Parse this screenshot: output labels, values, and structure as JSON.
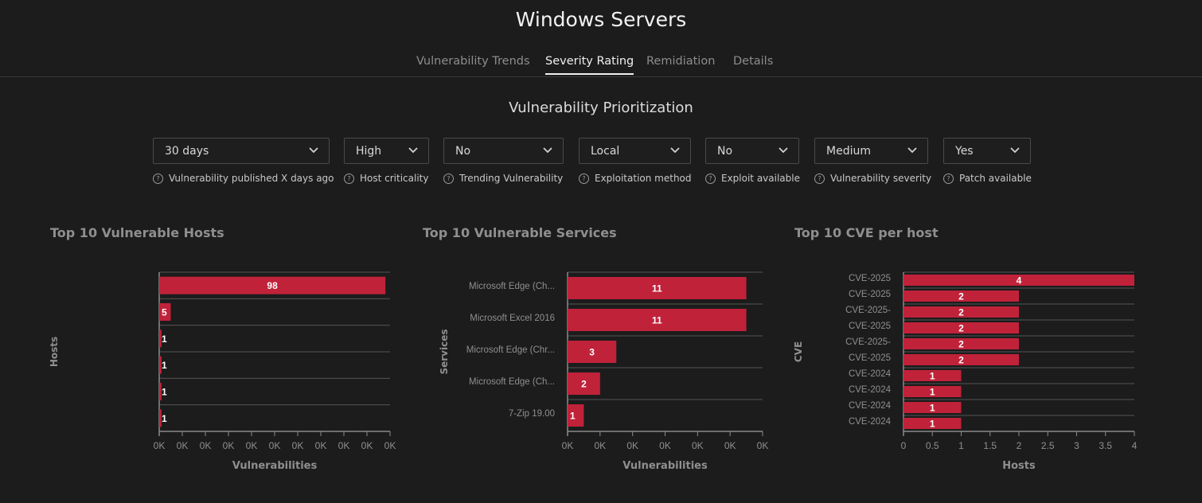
{
  "page": {
    "title": "Windows Servers"
  },
  "tabs": [
    {
      "label": "Vulnerability Trends",
      "active": false
    },
    {
      "label": "Severity Rating",
      "active": true
    },
    {
      "label": "Remidiation",
      "active": false
    },
    {
      "label": "Details",
      "active": false
    }
  ],
  "section": {
    "title": "Vulnerability Prioritization"
  },
  "filters": [
    {
      "value": "30 days",
      "help": "Vulnerability published X days ago"
    },
    {
      "value": "High",
      "help": "Host criticality"
    },
    {
      "value": "No",
      "help": "Trending Vulnerability"
    },
    {
      "value": "Local",
      "help": "Exploitation method"
    },
    {
      "value": "No",
      "help": "Exploit available"
    },
    {
      "value": "Medium",
      "help": "Vulnerability severity"
    },
    {
      "value": "Yes",
      "help": "Patch available"
    }
  ],
  "colors": {
    "bar": "#c0223a",
    "axis": "#8a8a8a",
    "grid": "#555555",
    "label": "#8f8f8f"
  },
  "chart_data": [
    {
      "type": "bar",
      "orientation": "horizontal",
      "title": "Top 10 Vulnerable Hosts",
      "xlabel": "Vulnerabilities",
      "ylabel": "Hosts",
      "categories": [
        "",
        "",
        "",
        "",
        "",
        ""
      ],
      "values": [
        98,
        5,
        1,
        1,
        1,
        1
      ],
      "xticks": [
        "0K",
        "0K",
        "0K",
        "0K",
        "0K",
        "0K",
        "0K",
        "0K",
        "0K",
        "0K",
        "0K"
      ],
      "xlim": [
        0,
        100
      ]
    },
    {
      "type": "bar",
      "orientation": "horizontal",
      "title": "Top 10 Vulnerable Services",
      "xlabel": "Vulnerabilities",
      "ylabel": "Services",
      "categories": [
        "Microsoft Edge (Ch...",
        "Microsoft Excel 2016",
        "Microsoft Edge (Chr...",
        "Microsoft Edge (Ch...",
        "7-Zip 19.00"
      ],
      "values": [
        11,
        11,
        3,
        2,
        1
      ],
      "xticks": [
        "0K",
        "0K",
        "0K",
        "0K",
        "0K",
        "0K",
        "0K"
      ],
      "xlim": [
        0,
        12
      ]
    },
    {
      "type": "bar",
      "orientation": "horizontal",
      "title": "Top 10 CVE per host",
      "xlabel": "Hosts",
      "ylabel": "CVE",
      "categories": [
        "CVE-2025",
        "CVE-2025",
        "CVE-2025-",
        "CVE-2025",
        "CVE-2025-",
        "CVE-2025",
        "CVE-2024",
        "CVE-2024",
        "CVE-2024",
        "CVE-2024"
      ],
      "values": [
        4,
        2,
        2,
        2,
        2,
        2,
        1,
        1,
        1,
        1
      ],
      "xticks": [
        "0",
        "0.5",
        "1",
        "1.5",
        "2",
        "2.5",
        "3",
        "3.5",
        "4"
      ],
      "xlim": [
        0,
        4
      ]
    }
  ]
}
